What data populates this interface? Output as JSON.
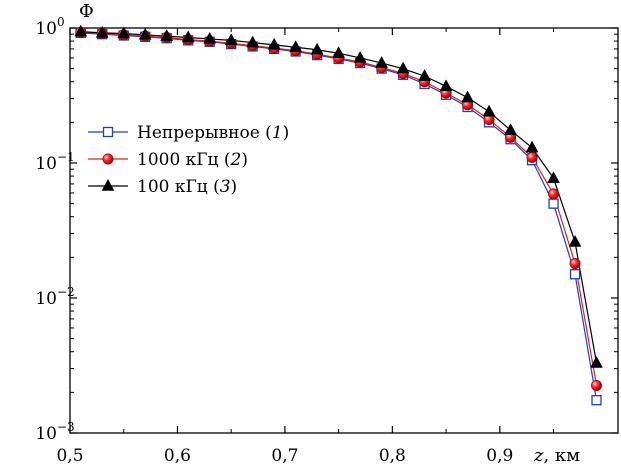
{
  "chart_data": {
    "type": "line",
    "ylabel": "Φ",
    "xlabel": {
      "var": "z",
      "unit": ", км"
    },
    "xlim": [
      0.5,
      1.01
    ],
    "ylim": [
      0.001,
      1
    ],
    "yscale": "log",
    "xticks": [
      {
        "value": 0.5,
        "label": "0,5"
      },
      {
        "value": 0.6,
        "label": "0,6"
      },
      {
        "value": 0.7,
        "label": "0,7"
      },
      {
        "value": 0.8,
        "label": "0,8"
      },
      {
        "value": 0.9,
        "label": "0,9"
      }
    ],
    "yticks": [
      {
        "value": 1,
        "base": "10",
        "exp": "0"
      },
      {
        "value": 0.1,
        "base": "10",
        "exp": "−1"
      },
      {
        "value": 0.01,
        "base": "10",
        "exp": "−2"
      },
      {
        "value": 0.001,
        "base": "10",
        "exp": "−3"
      }
    ],
    "x": [
      0.51,
      0.53,
      0.55,
      0.57,
      0.59,
      0.61,
      0.63,
      0.65,
      0.67,
      0.69,
      0.71,
      0.73,
      0.75,
      0.77,
      0.79,
      0.81,
      0.83,
      0.85,
      0.87,
      0.89,
      0.91,
      0.93,
      0.95,
      0.97,
      0.99
    ],
    "series": [
      {
        "name": "Непрерывное",
        "num": "1",
        "color": "#1f3fbf",
        "marker": "square-open",
        "values": [
          0.92,
          0.9,
          0.88,
          0.86,
          0.84,
          0.81,
          0.79,
          0.76,
          0.73,
          0.7,
          0.67,
          0.63,
          0.59,
          0.55,
          0.5,
          0.45,
          0.385,
          0.32,
          0.26,
          0.2,
          0.15,
          0.105,
          0.05,
          0.015,
          0.00175
        ]
      },
      {
        "name": "1000 кГц",
        "num": "2",
        "color": "#e0201e",
        "marker": "circle-filled",
        "values": [
          0.93,
          0.91,
          0.89,
          0.87,
          0.85,
          0.82,
          0.8,
          0.77,
          0.74,
          0.71,
          0.68,
          0.64,
          0.6,
          0.56,
          0.51,
          0.46,
          0.4,
          0.33,
          0.27,
          0.21,
          0.155,
          0.11,
          0.059,
          0.018,
          0.00225
        ]
      },
      {
        "name": "100 кГц",
        "num": "3",
        "color": "#000000",
        "marker": "triangle-filled",
        "values": [
          0.94,
          0.92,
          0.91,
          0.89,
          0.87,
          0.85,
          0.83,
          0.81,
          0.78,
          0.75,
          0.72,
          0.69,
          0.65,
          0.6,
          0.55,
          0.5,
          0.44,
          0.37,
          0.305,
          0.24,
          0.175,
          0.13,
          0.077,
          0.026,
          0.0033
        ]
      }
    ],
    "legend": {
      "position": "left-middle"
    },
    "grid": false
  }
}
